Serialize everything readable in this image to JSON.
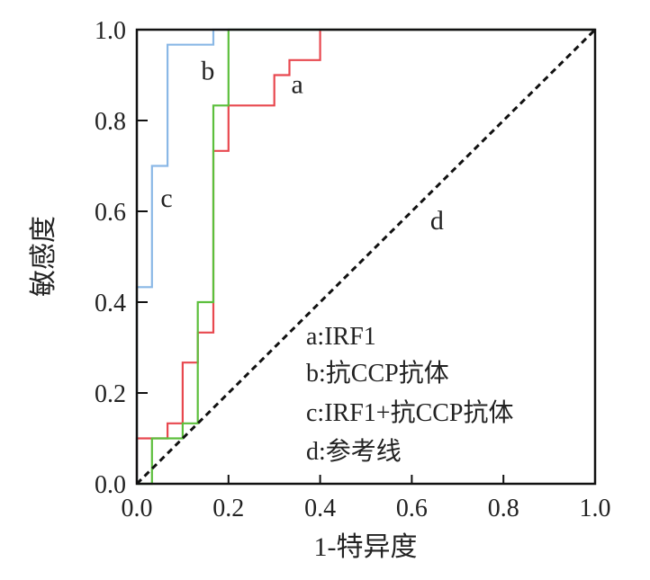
{
  "chart_data": {
    "type": "line",
    "title": "",
    "xlabel": "1-特异度",
    "ylabel": "敏感度",
    "xlim": [
      0,
      1
    ],
    "ylim": [
      0,
      1
    ],
    "xticks": [
      "0.0",
      "0.2",
      "0.4",
      "0.6",
      "0.8",
      "1.0"
    ],
    "yticks": [
      "0.0",
      "0.2",
      "0.4",
      "0.6",
      "0.8",
      "1.0"
    ],
    "grid": false,
    "legend": [
      "a:IRF1",
      "b:抗CCP抗体",
      "c:IRF1+抗CCP抗体",
      "d:参考线"
    ],
    "legend_position": "bottom-right",
    "series": [
      {
        "name": "a",
        "label": "IRF1",
        "color": "#e8484f",
        "points": [
          [
            0,
            0
          ],
          [
            0,
            0.1
          ],
          [
            0.067,
            0.1
          ],
          [
            0.067,
            0.133
          ],
          [
            0.1,
            0.133
          ],
          [
            0.1,
            0.267
          ],
          [
            0.133,
            0.267
          ],
          [
            0.133,
            0.333
          ],
          [
            0.167,
            0.333
          ],
          [
            0.167,
            0.733
          ],
          [
            0.2,
            0.733
          ],
          [
            0.2,
            0.833
          ],
          [
            0.3,
            0.833
          ],
          [
            0.3,
            0.9
          ],
          [
            0.333,
            0.9
          ],
          [
            0.333,
            0.933
          ],
          [
            0.4,
            0.933
          ],
          [
            0.4,
            1
          ],
          [
            1,
            1
          ]
        ]
      },
      {
        "name": "b",
        "label": "抗CCP抗体",
        "color": "#5cbf3c",
        "points": [
          [
            0,
            0
          ],
          [
            0.033,
            0
          ],
          [
            0.033,
            0.1
          ],
          [
            0.1,
            0.1
          ],
          [
            0.1,
            0.133
          ],
          [
            0.133,
            0.133
          ],
          [
            0.133,
            0.4
          ],
          [
            0.167,
            0.4
          ],
          [
            0.167,
            0.833
          ],
          [
            0.2,
            0.833
          ],
          [
            0.2,
            1
          ],
          [
            1,
            1
          ]
        ]
      },
      {
        "name": "c",
        "label": "IRF1+抗CCP抗体",
        "color": "#8ab8e6",
        "points": [
          [
            0,
            0
          ],
          [
            0,
            0.433
          ],
          [
            0.033,
            0.433
          ],
          [
            0.033,
            0.7
          ],
          [
            0.067,
            0.7
          ],
          [
            0.067,
            0.967
          ],
          [
            0.167,
            0.967
          ],
          [
            0.167,
            1
          ],
          [
            1,
            1
          ]
        ]
      },
      {
        "name": "d",
        "label": "参考线",
        "color": "#111111",
        "dashed": true,
        "points": [
          [
            0,
            0
          ],
          [
            1,
            1
          ]
        ]
      }
    ],
    "curve_labels": [
      {
        "text": "a",
        "x": 0.35,
        "y": 0.86
      },
      {
        "text": "b",
        "x": 0.155,
        "y": 0.89
      },
      {
        "text": "c",
        "x": 0.065,
        "y": 0.61
      },
      {
        "text": "d",
        "x": 0.655,
        "y": 0.56
      }
    ]
  }
}
